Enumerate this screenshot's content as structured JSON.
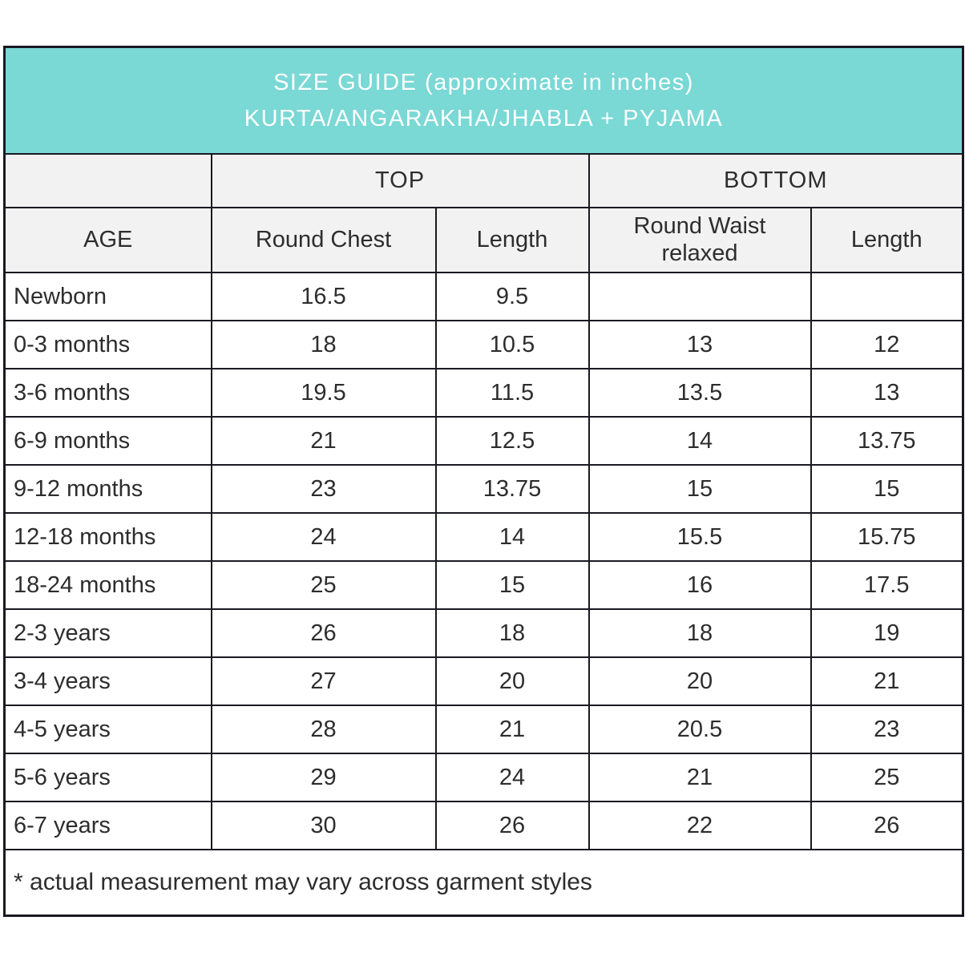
{
  "title": {
    "line1": "SIZE GUIDE (approximate in inches)",
    "line2": "KURTA/ANGARAKHA/JHABLA + PYJAMA"
  },
  "colors": {
    "header_teal": "#7ad8d5",
    "header_gray": "#f2f2f2",
    "border": "#191922",
    "text": "#2d2d2d",
    "title_text": "#ffffff"
  },
  "table": {
    "group_headers": {
      "top": "TOP",
      "bottom": "BOTTOM"
    },
    "column_headers": {
      "age": "AGE",
      "round_chest": "Round Chest",
      "top_length": "Length",
      "round_waist": "Round Waist relaxed",
      "bottom_length": "Length"
    },
    "rows": [
      {
        "age": "Newborn",
        "round_chest": "16.5",
        "top_length": "9.5",
        "round_waist": "",
        "bottom_length": ""
      },
      {
        "age": "0-3 months",
        "round_chest": "18",
        "top_length": "10.5",
        "round_waist": "13",
        "bottom_length": "12"
      },
      {
        "age": "3-6 months",
        "round_chest": "19.5",
        "top_length": "11.5",
        "round_waist": "13.5",
        "bottom_length": "13"
      },
      {
        "age": "6-9 months",
        "round_chest": "21",
        "top_length": "12.5",
        "round_waist": "14",
        "bottom_length": "13.75"
      },
      {
        "age": "9-12 months",
        "round_chest": "23",
        "top_length": "13.75",
        "round_waist": "15",
        "bottom_length": "15"
      },
      {
        "age": "12-18 months",
        "round_chest": "24",
        "top_length": "14",
        "round_waist": "15.5",
        "bottom_length": "15.75"
      },
      {
        "age": "18-24 months",
        "round_chest": "25",
        "top_length": "15",
        "round_waist": "16",
        "bottom_length": "17.5"
      },
      {
        "age": "2-3 years",
        "round_chest": "26",
        "top_length": "18",
        "round_waist": "18",
        "bottom_length": "19"
      },
      {
        "age": "3-4 years",
        "round_chest": "27",
        "top_length": "20",
        "round_waist": "20",
        "bottom_length": "21"
      },
      {
        "age": "4-5 years",
        "round_chest": "28",
        "top_length": "21",
        "round_waist": "20.5",
        "bottom_length": "23"
      },
      {
        "age": "5-6 years",
        "round_chest": "29",
        "top_length": "24",
        "round_waist": "21",
        "bottom_length": "25"
      },
      {
        "age": "6-7 years",
        "round_chest": "30",
        "top_length": "26",
        "round_waist": "22",
        "bottom_length": "26"
      }
    ],
    "footnote": "* actual measurement may vary across garment styles"
  }
}
